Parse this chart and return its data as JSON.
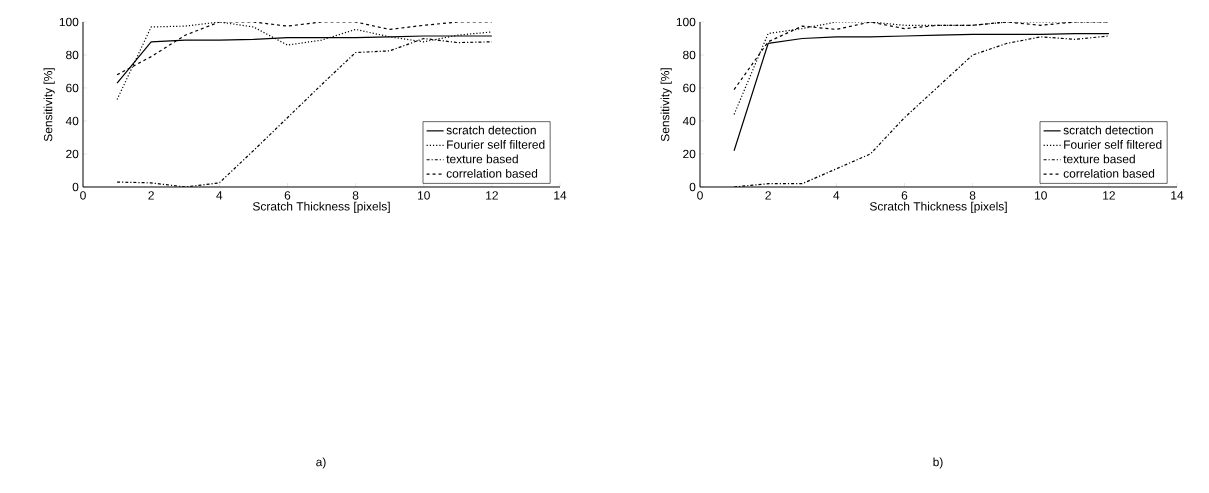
{
  "chart_data": [
    {
      "type": "line",
      "xlabel": "Scratch Thickness [pixels]",
      "ylabel": "Sensitivity [%]",
      "annotations": [
        "a)"
      ],
      "x": [
        1,
        2,
        3,
        4,
        5,
        6,
        7,
        8,
        9,
        10,
        11,
        12
      ],
      "xlim": [
        0,
        14
      ],
      "xticks": [
        0,
        2,
        4,
        6,
        8,
        10,
        12,
        14
      ],
      "ylim": [
        0,
        100
      ],
      "yticks": [
        0,
        20,
        40,
        60,
        80,
        100
      ],
      "grid": false,
      "legend": "bottom right",
      "marker": "none",
      "series": [
        {
          "name": "scratch detection",
          "color": "#000000",
          "line_style": "solid",
          "values": [
            63,
            88,
            89,
            89,
            89.5,
            90.5,
            90.5,
            90.5,
            91,
            91.5,
            91.5,
            91.5
          ]
        },
        {
          "name": "Fourier self filtered",
          "color": "#000000",
          "line_style": "dotted",
          "values": [
            53,
            97,
            97.5,
            100,
            97,
            86,
            89,
            95.5,
            91,
            88,
            92,
            94
          ]
        },
        {
          "name": "texture based",
          "color": "#000000",
          "line_style": "dashdot",
          "values": [
            3,
            2.5,
            0,
            2.5,
            22,
            42,
            62,
            81.5,
            82.5,
            90,
            87.5,
            88
          ]
        },
        {
          "name": "correlation based",
          "color": "#000000",
          "line_style": "dashed",
          "values": [
            68,
            79,
            92,
            100,
            100,
            97.5,
            100,
            100,
            95.5,
            98,
            100,
            100
          ]
        }
      ]
    },
    {
      "type": "line",
      "xlabel": "Scratch Thickness [pixels]",
      "ylabel": "Sensitivity [%]",
      "annotations": [
        "b)"
      ],
      "x": [
        1,
        2,
        3,
        4,
        5,
        6,
        7,
        8,
        9,
        10,
        11,
        12
      ],
      "xlim": [
        0,
        14
      ],
      "xticks": [
        0,
        2,
        4,
        6,
        8,
        10,
        12,
        14
      ],
      "ylim": [
        0,
        100
      ],
      "yticks": [
        0,
        20,
        40,
        60,
        80,
        100
      ],
      "grid": false,
      "legend": "bottom right",
      "marker": "none",
      "series": [
        {
          "name": "scratch detection",
          "color": "#000000",
          "line_style": "solid",
          "values": [
            22,
            87,
            90,
            91,
            91,
            91.5,
            92,
            92.5,
            92.5,
            92.5,
            93,
            93
          ]
        },
        {
          "name": "Fourier self filtered",
          "color": "#000000",
          "line_style": "dotted",
          "values": [
            44,
            93,
            96,
            100,
            100,
            98,
            98,
            98,
            100,
            100,
            100,
            100
          ]
        },
        {
          "name": "texture based",
          "color": "#000000",
          "line_style": "dashdot",
          "values": [
            0,
            2,
            2,
            11,
            20,
            42,
            61,
            80,
            87,
            91,
            89.5,
            91.5
          ]
        },
        {
          "name": "correlation based",
          "color": "#000000",
          "line_style": "dashed",
          "values": [
            59,
            88,
            97.5,
            95.5,
            100,
            96,
            98,
            98,
            100,
            98,
            100,
            100
          ]
        }
      ]
    }
  ]
}
